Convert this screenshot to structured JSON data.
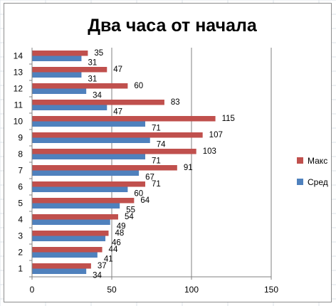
{
  "chart_data": {
    "type": "bar",
    "orientation": "horizontal",
    "title": "Два часа от начала",
    "categories": [
      "1",
      "2",
      "3",
      "4",
      "5",
      "6",
      "7",
      "8",
      "9",
      "10",
      "11",
      "12",
      "13",
      "14"
    ],
    "series": [
      {
        "name": "Сред",
        "color": "#4f81bd",
        "values": [
          34,
          41,
          46,
          49,
          55,
          60,
          67,
          71,
          74,
          71,
          47,
          34,
          31,
          31
        ]
      },
      {
        "name": "Макс",
        "color": "#c0504d",
        "values": [
          37,
          44,
          48,
          54,
          64,
          71,
          91,
          103,
          107,
          115,
          83,
          60,
          47,
          35
        ]
      }
    ],
    "xlim": [
      0,
      150
    ],
    "xticks": [
      0,
      50,
      100,
      150
    ],
    "xlabel": "",
    "ylabel": "",
    "grid": "vertical",
    "legend": "right",
    "legend_order": [
      "Макс",
      "Сред"
    ],
    "data_labels": true
  }
}
